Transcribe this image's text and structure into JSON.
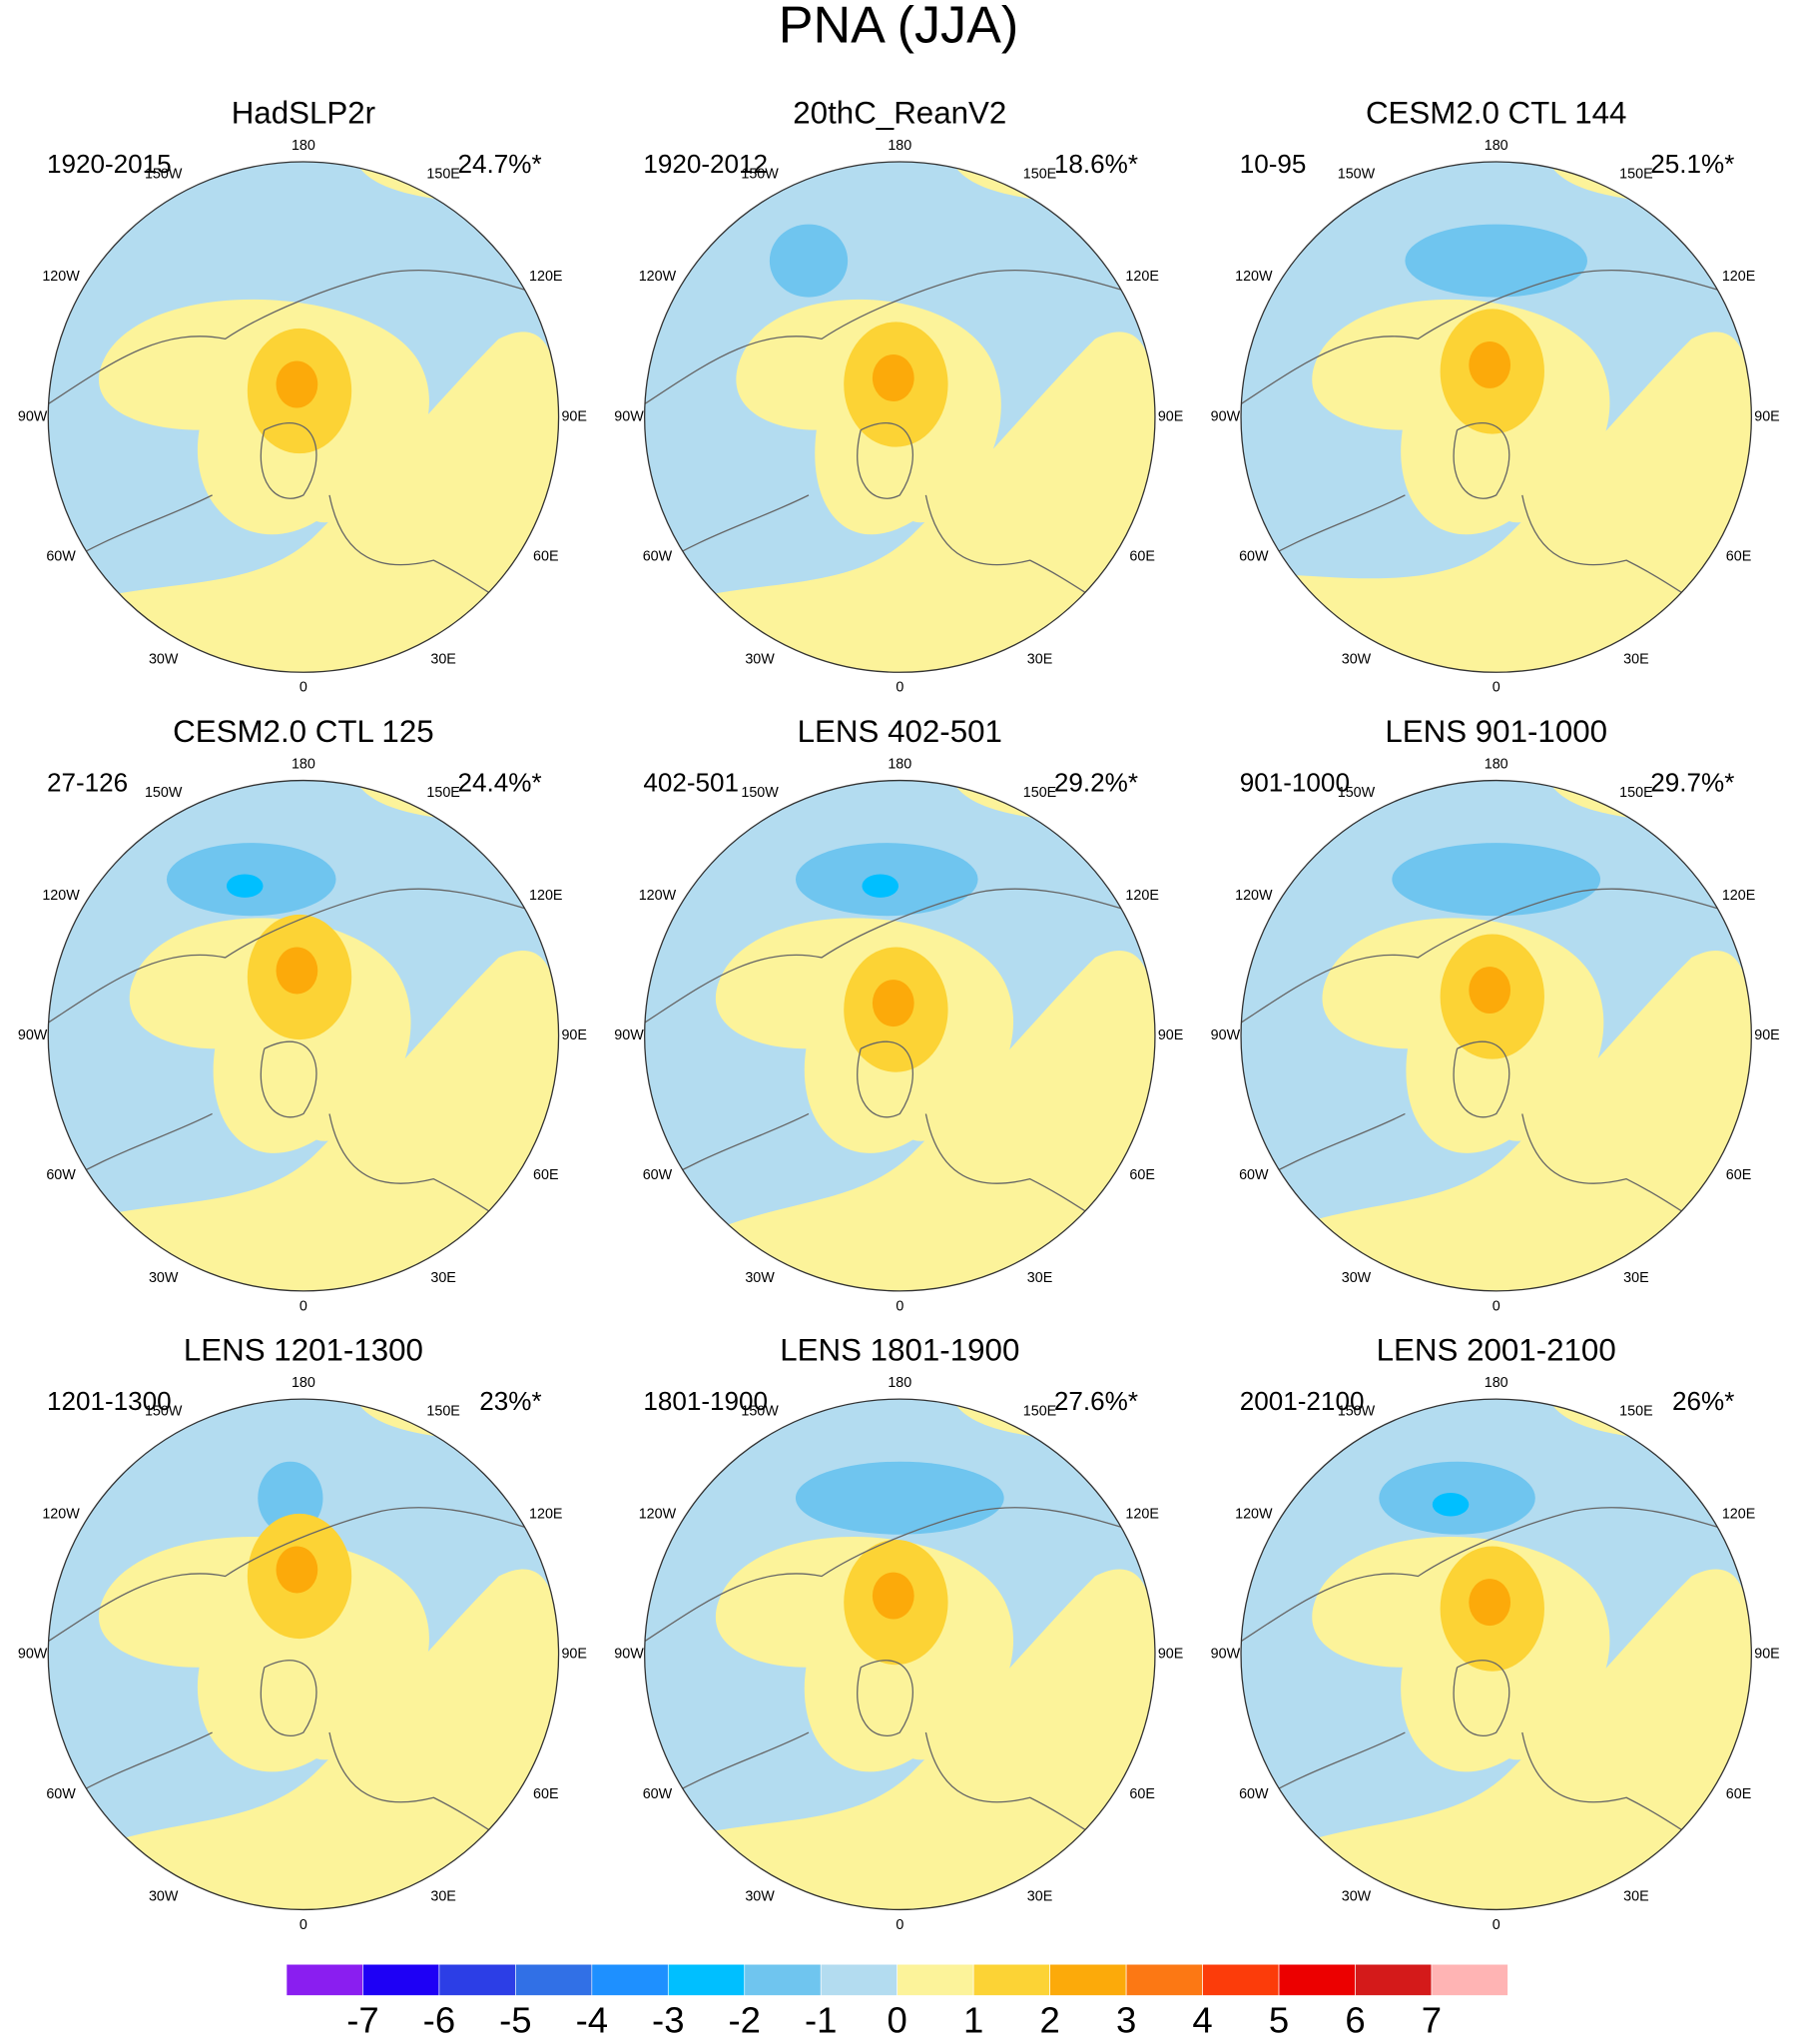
{
  "title": "PNA (JJA)",
  "panels": [
    {
      "title": "HadSLP2r",
      "period": "1920-2015",
      "percent": "24.7%*"
    },
    {
      "title": "20thC_ReanV2",
      "period": "1920-2012",
      "percent": "18.6%*"
    },
    {
      "title": "CESM2.0 CTL 144",
      "period": "10-95",
      "percent": "25.1%*"
    },
    {
      "title": "CESM2.0 CTL 125",
      "period": "27-126",
      "percent": "24.4%*"
    },
    {
      "title": "LENS 402-501",
      "period": "402-501",
      "percent": "29.2%*"
    },
    {
      "title": "LENS 901-1000",
      "period": "901-1000",
      "percent": "29.7%*"
    },
    {
      "title": "LENS 1201-1300",
      "period": "1201-1300",
      "percent": "23%*"
    },
    {
      "title": "LENS 1801-1900",
      "period": "1801-1900",
      "percent": "27.6%*"
    },
    {
      "title": "LENS 2001-2100",
      "period": "2001-2100",
      "percent": "26%*"
    }
  ],
  "lon_labels": [
    "180",
    "150E",
    "120E",
    "90E",
    "60E",
    "30E",
    "0",
    "30W",
    "60W",
    "90W",
    "120W",
    "150W"
  ],
  "colorbar": {
    "colors": [
      "#8a1ef0",
      "#1e00f5",
      "#2c3ee6",
      "#3170e6",
      "#1e90ff",
      "#00bfff",
      "#6fc5ef",
      "#b3dcf0",
      "#fcf39a",
      "#fcd335",
      "#fcaa0a",
      "#fc7814",
      "#fc3c0a",
      "#ec0000",
      "#d41a1a",
      "#ffb4b4"
    ],
    "ticks": [
      -7,
      -6,
      -5,
      -4,
      -3,
      -2,
      -1,
      0,
      1,
      2,
      3,
      4,
      5,
      6,
      7
    ]
  }
}
